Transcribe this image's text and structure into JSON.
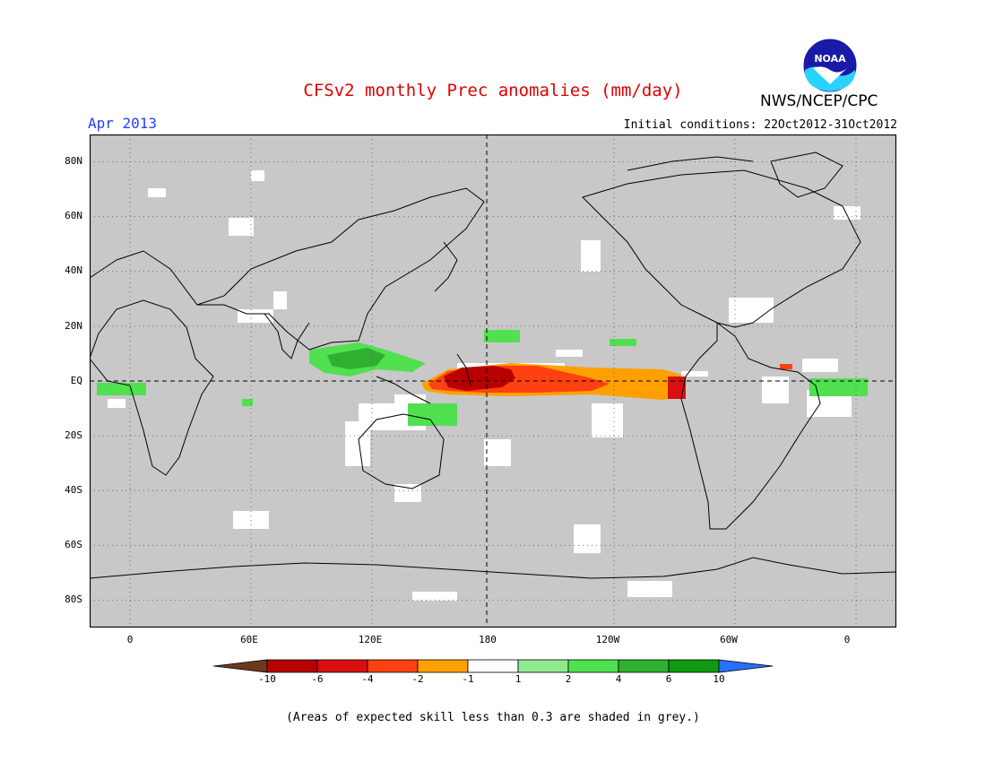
{
  "header": {
    "title": "CFSv2 monthly Prec anomalies (mm/day)",
    "valid_month": "Apr 2013",
    "initial_conditions": "Initial conditions: 22Oct2012-31Oct2012",
    "agency": "NWS/NCEP/CPC",
    "logo_text": "NOAA"
  },
  "map": {
    "projection": "cylindrical equidistant",
    "background_color": "#c8c8c8",
    "lat_labels": [
      "80N",
      "60N",
      "40N",
      "20N",
      "EQ",
      "20S",
      "40S",
      "60S",
      "80S"
    ],
    "lon_labels": [
      "0",
      "60E",
      "120E",
      "180",
      "120W",
      "60W",
      "0"
    ]
  },
  "colorbar": {
    "levels": [
      "-10",
      "-6",
      "-4",
      "-2",
      "-1",
      "1",
      "2",
      "4",
      "6",
      "10"
    ],
    "colors": [
      "#6b3a1e",
      "#b80000",
      "#d81010",
      "#ff4010",
      "#ffa000",
      "#ffffff",
      "#90e890",
      "#50e050",
      "#30b030",
      "#109a10",
      "#2870ff"
    ]
  },
  "footer": {
    "note": "(Areas of expected skill less than 0.3 are shaded in grey.)"
  }
}
